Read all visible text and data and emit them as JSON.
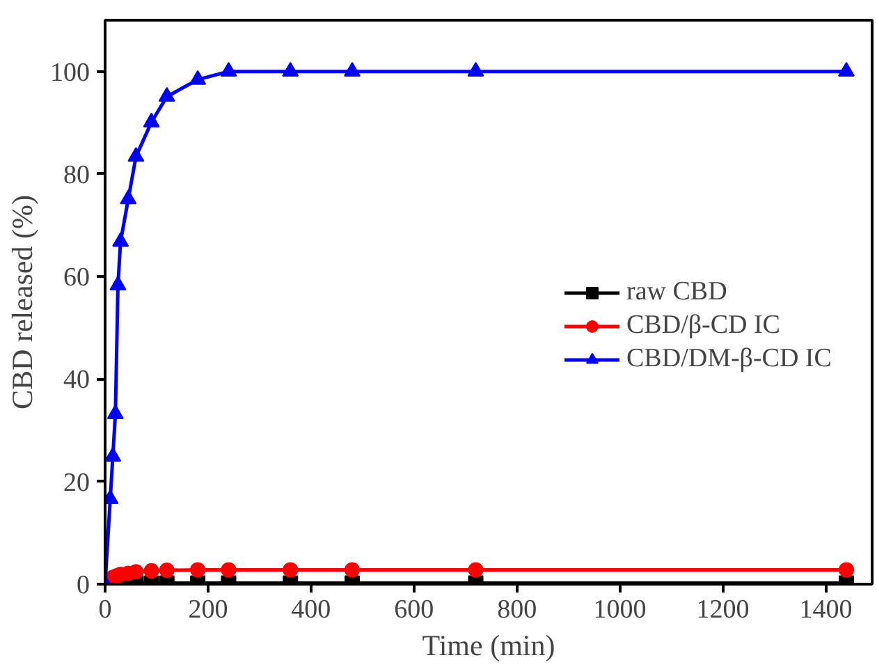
{
  "chart_data": {
    "type": "line",
    "xlabel": "Time (min)",
    "ylabel": "CBD released (%)",
    "xlim": [
      0,
      1490
    ],
    "ylim": [
      0,
      110
    ],
    "xticks": [
      0,
      200,
      400,
      600,
      800,
      1000,
      1200,
      1400
    ],
    "yticks": [
      0,
      20,
      40,
      60,
      80,
      100
    ],
    "grid": false,
    "legend": "right",
    "series": [
      {
        "name": "raw CBD",
        "color": "#000000",
        "marker": "square",
        "x": [
          10,
          15,
          20,
          25,
          30,
          45,
          60,
          90,
          120,
          180,
          240,
          360,
          480,
          720,
          1440
        ],
        "values": [
          0.1,
          0.1,
          0.1,
          0.2,
          0.2,
          0.2,
          0.2,
          0.2,
          0.2,
          0.2,
          0.2,
          0.2,
          0.2,
          0.2,
          0.2
        ]
      },
      {
        "name": "CBD/β-CD IC",
        "color": "#ff0000",
        "marker": "circle",
        "x": [
          10,
          15,
          20,
          25,
          30,
          45,
          60,
          90,
          120,
          180,
          240,
          360,
          480,
          720,
          1440
        ],
        "values": [
          1.0,
          1.3,
          1.5,
          1.7,
          1.9,
          2.1,
          2.4,
          2.6,
          2.7,
          2.8,
          2.8,
          2.8,
          2.8,
          2.8,
          2.8
        ]
      },
      {
        "name": "CBD/DM-β-CD IC",
        "color": "#0000ff",
        "marker": "triangle",
        "x": [
          0,
          10,
          15,
          20,
          25,
          30,
          45,
          60,
          90,
          120,
          180,
          240,
          360,
          480,
          720,
          1440
        ],
        "values": [
          0,
          16.6,
          24.9,
          33.2,
          58.3,
          66.8,
          75.1,
          83.4,
          90.1,
          95.1,
          98.4,
          100,
          100,
          100,
          100,
          100
        ]
      }
    ]
  }
}
